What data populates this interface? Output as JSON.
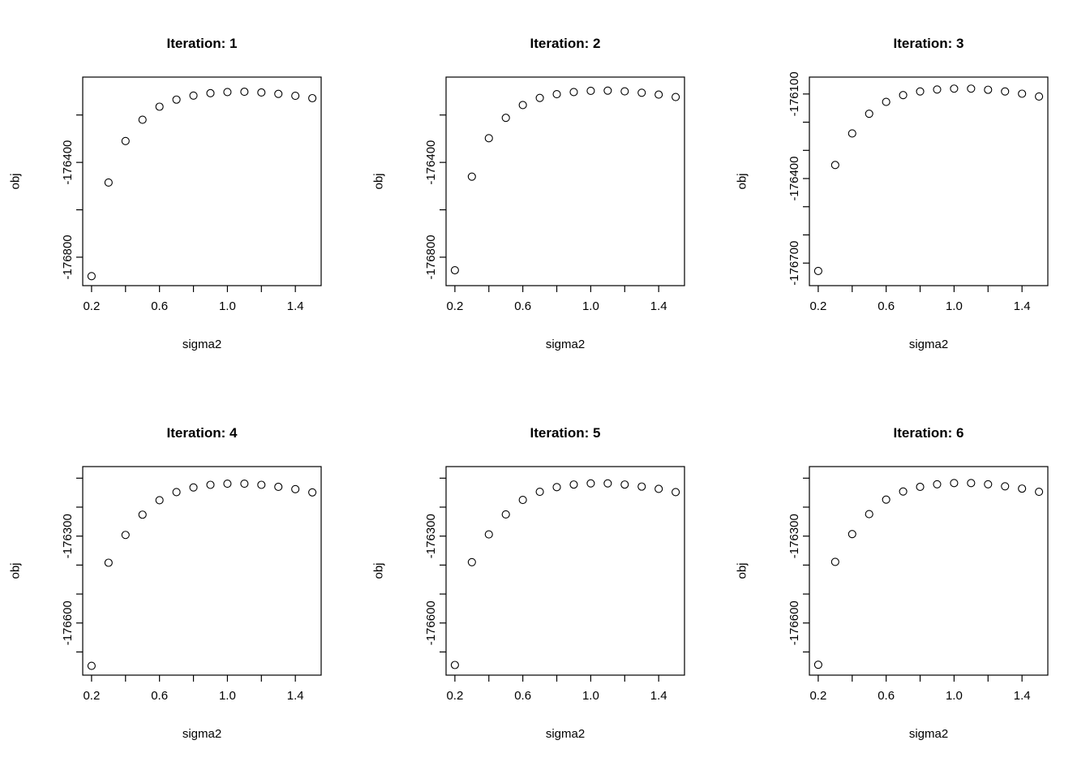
{
  "figure_title": "",
  "chart_data": [
    {
      "type": "scatter",
      "title": "Iteration: 1",
      "xlabel": "sigma2",
      "ylabel": "obj",
      "x": [
        0.2,
        0.3,
        0.4,
        0.5,
        0.6,
        0.7,
        0.8,
        0.9,
        1.0,
        1.1,
        1.2,
        1.3,
        1.4,
        1.5
      ],
      "y": [
        -176880,
        -176485,
        -176310,
        -176220,
        -176165,
        -176135,
        -176118,
        -176108,
        -176103,
        -176102,
        -176105,
        -176111,
        -176119,
        -176129
      ],
      "xlim": [
        0.148,
        1.552
      ],
      "ylim": [
        -176920,
        -176040
      ],
      "xticks": {
        "values": [
          0.2,
          0.4,
          0.6,
          0.8,
          1.0,
          1.2,
          1.4
        ],
        "labels": [
          "0.2",
          "",
          "0.6",
          "",
          "1.0",
          "",
          "1.4"
        ]
      },
      "yticks": {
        "values": [
          -176200,
          -176400,
          -176600,
          -176800
        ],
        "labels": [
          "",
          "-176400",
          "",
          "-176800"
        ]
      },
      "grid": false,
      "legend": "none",
      "marker": "open-circle"
    },
    {
      "type": "scatter",
      "title": "Iteration: 2",
      "xlabel": "sigma2",
      "ylabel": "obj",
      "x": [
        0.2,
        0.3,
        0.4,
        0.5,
        0.6,
        0.7,
        0.8,
        0.9,
        1.0,
        1.1,
        1.2,
        1.3,
        1.4,
        1.5
      ],
      "y": [
        -176855,
        -176460,
        -176298,
        -176212,
        -176158,
        -176128,
        -176112,
        -176103,
        -176098,
        -176097,
        -176100,
        -176106,
        -176114,
        -176124
      ],
      "xlim": [
        0.148,
        1.552
      ],
      "ylim": [
        -176920,
        -176040
      ],
      "xticks": {
        "values": [
          0.2,
          0.4,
          0.6,
          0.8,
          1.0,
          1.2,
          1.4
        ],
        "labels": [
          "0.2",
          "",
          "0.6",
          "",
          "1.0",
          "",
          "1.4"
        ]
      },
      "yticks": {
        "values": [
          -176200,
          -176400,
          -176600,
          -176800
        ],
        "labels": [
          "",
          "-176400",
          "",
          "-176800"
        ]
      },
      "grid": false,
      "legend": "none",
      "marker": "open-circle"
    },
    {
      "type": "scatter",
      "title": "Iteration: 3",
      "xlabel": "sigma2",
      "ylabel": "obj",
      "x": [
        0.2,
        0.3,
        0.4,
        0.5,
        0.6,
        0.7,
        0.8,
        0.9,
        1.0,
        1.1,
        1.2,
        1.3,
        1.4,
        1.5
      ],
      "y": [
        -176728,
        -176352,
        -176240,
        -176170,
        -176128,
        -176104,
        -176091,
        -176084,
        -176081,
        -176081,
        -176085,
        -176091,
        -176099,
        -176109
      ],
      "xlim": [
        0.148,
        1.552
      ],
      "ylim": [
        -176780,
        -176040
      ],
      "xticks": {
        "values": [
          0.2,
          0.4,
          0.6,
          0.8,
          1.0,
          1.2,
          1.4
        ],
        "labels": [
          "0.2",
          "",
          "0.6",
          "",
          "1.0",
          "",
          "1.4"
        ]
      },
      "yticks": {
        "values": [
          -176100,
          -176200,
          -176300,
          -176400,
          -176500,
          -176600,
          -176700
        ],
        "labels": [
          "-176100",
          "",
          "",
          "-176400",
          "",
          "",
          "-176700"
        ]
      },
      "grid": false,
      "legend": "none",
      "marker": "open-circle"
    },
    {
      "type": "scatter",
      "title": "Iteration: 4",
      "xlabel": "sigma2",
      "ylabel": "obj",
      "x": [
        0.2,
        0.3,
        0.4,
        0.5,
        0.6,
        0.7,
        0.8,
        0.9,
        1.0,
        1.1,
        1.2,
        1.3,
        1.4,
        1.5
      ],
      "y": [
        -176748,
        -176392,
        -176296,
        -176226,
        -176176,
        -176148,
        -176132,
        -176123,
        -176119,
        -176119,
        -176123,
        -176130,
        -176138,
        -176149
      ],
      "xlim": [
        0.148,
        1.552
      ],
      "ylim": [
        -176780,
        -176060
      ],
      "xticks": {
        "values": [
          0.2,
          0.4,
          0.6,
          0.8,
          1.0,
          1.2,
          1.4
        ],
        "labels": [
          "0.2",
          "",
          "0.6",
          "",
          "1.0",
          "",
          "1.4"
        ]
      },
      "yticks": {
        "values": [
          -176100,
          -176200,
          -176300,
          -176400,
          -176500,
          -176600,
          -176700
        ],
        "labels": [
          "",
          "",
          "-176300",
          "",
          "",
          "-176600",
          ""
        ]
      },
      "grid": false,
      "legend": "none",
      "marker": "open-circle"
    },
    {
      "type": "scatter",
      "title": "Iteration: 5",
      "xlabel": "sigma2",
      "ylabel": "obj",
      "x": [
        0.2,
        0.3,
        0.4,
        0.5,
        0.6,
        0.7,
        0.8,
        0.9,
        1.0,
        1.1,
        1.2,
        1.3,
        1.4,
        1.5
      ],
      "y": [
        -176745,
        -176390,
        -176294,
        -176225,
        -176175,
        -176147,
        -176131,
        -176122,
        -176118,
        -176118,
        -176122,
        -176129,
        -176137,
        -176148
      ],
      "xlim": [
        0.148,
        1.552
      ],
      "ylim": [
        -176780,
        -176060
      ],
      "xticks": {
        "values": [
          0.2,
          0.4,
          0.6,
          0.8,
          1.0,
          1.2,
          1.4
        ],
        "labels": [
          "0.2",
          "",
          "0.6",
          "",
          "1.0",
          "",
          "1.4"
        ]
      },
      "yticks": {
        "values": [
          -176100,
          -176200,
          -176300,
          -176400,
          -176500,
          -176600,
          -176700
        ],
        "labels": [
          "",
          "",
          "-176300",
          "",
          "",
          "-176600",
          ""
        ]
      },
      "grid": false,
      "legend": "none",
      "marker": "open-circle"
    },
    {
      "type": "scatter",
      "title": "Iteration: 6",
      "xlabel": "sigma2",
      "ylabel": "obj",
      "x": [
        0.2,
        0.3,
        0.4,
        0.5,
        0.6,
        0.7,
        0.8,
        0.9,
        1.0,
        1.1,
        1.2,
        1.3,
        1.4,
        1.5
      ],
      "y": [
        -176744,
        -176389,
        -176293,
        -176224,
        -176174,
        -176146,
        -176130,
        -176121,
        -176117,
        -176117,
        -176121,
        -176128,
        -176136,
        -176147
      ],
      "xlim": [
        0.148,
        1.552
      ],
      "ylim": [
        -176780,
        -176060
      ],
      "xticks": {
        "values": [
          0.2,
          0.4,
          0.6,
          0.8,
          1.0,
          1.2,
          1.4
        ],
        "labels": [
          "0.2",
          "",
          "0.6",
          "",
          "1.0",
          "",
          "1.4"
        ]
      },
      "yticks": {
        "values": [
          -176100,
          -176200,
          -176300,
          -176400,
          -176500,
          -176600,
          -176700
        ],
        "labels": [
          "",
          "",
          "-176300",
          "",
          "",
          "-176600",
          ""
        ]
      },
      "grid": false,
      "legend": "none",
      "marker": "open-circle"
    }
  ],
  "colors": {
    "foreground": "#000000",
    "background": "#ffffff"
  }
}
